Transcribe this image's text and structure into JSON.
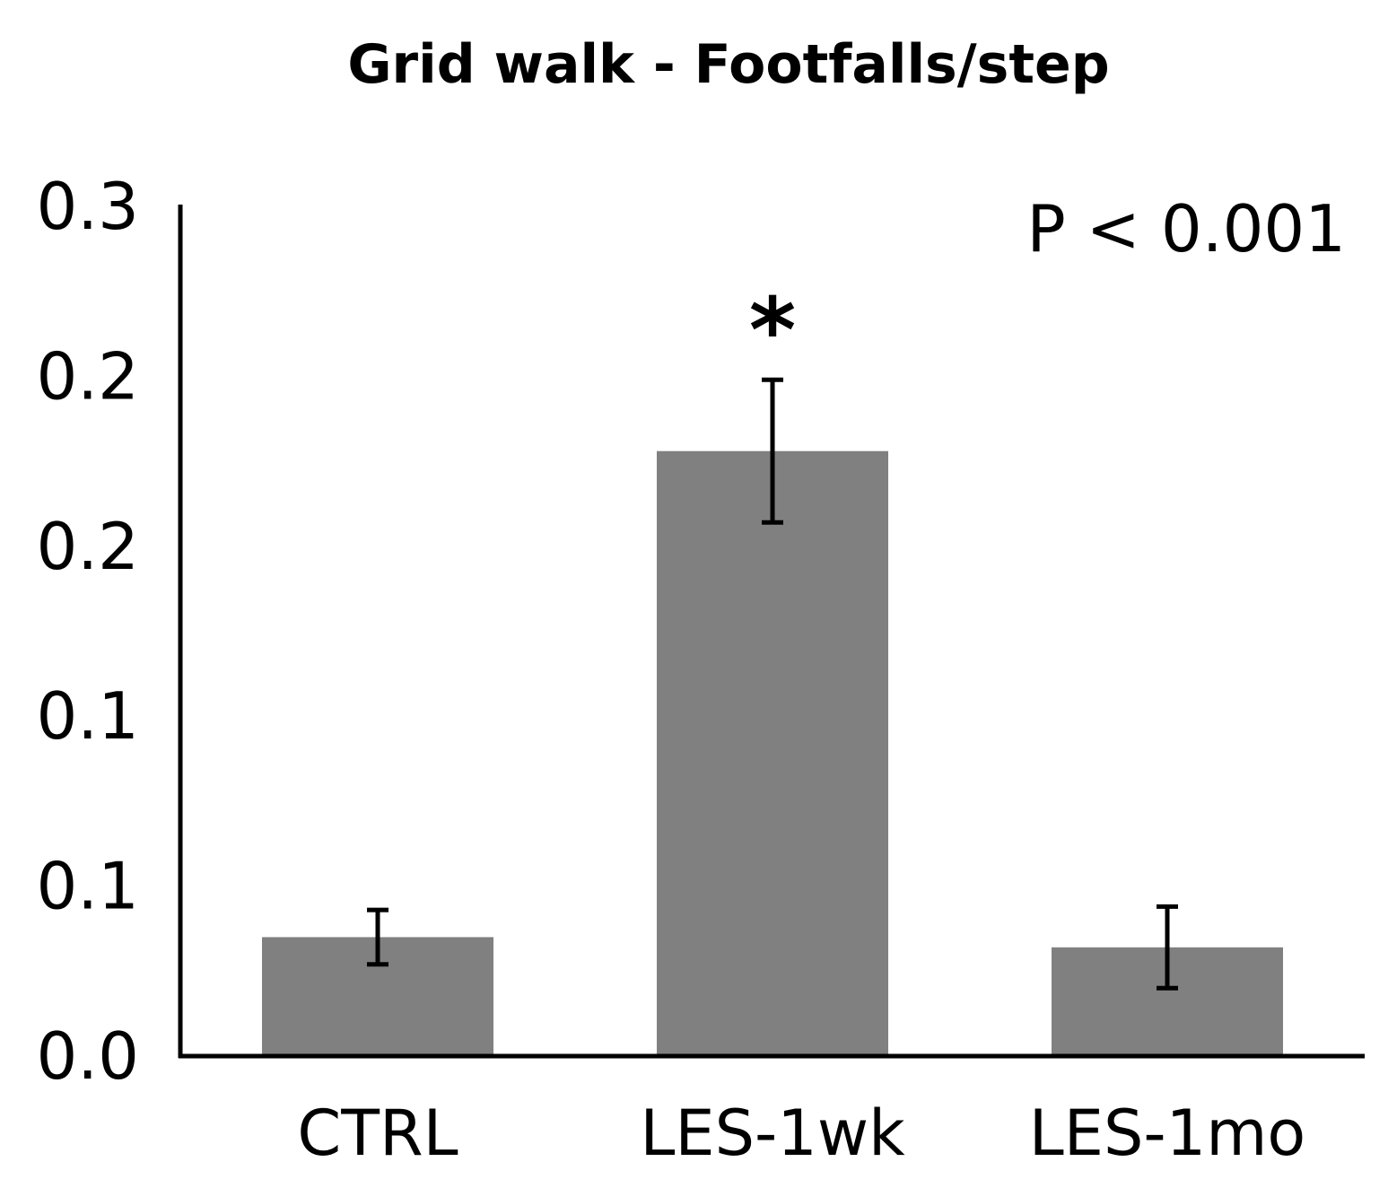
{
  "chart_data": {
    "type": "bar",
    "title": "Grid walk - Footfalls/step",
    "xlabel": "",
    "ylabel": "",
    "categories": [
      "CTRL",
      "LES-1wk",
      "LES-1mo"
    ],
    "values": [
      0.035,
      0.178,
      0.032
    ],
    "error": [
      0.008,
      0.021,
      0.012
    ],
    "ylim": [
      0,
      0.25
    ],
    "y_ticks": [
      0,
      0.05,
      0.1,
      0.15,
      0.2,
      0.25
    ],
    "y_tick_labels": [
      "0.0",
      "0.1",
      "0.1",
      "0.2",
      "0.2",
      "0.3"
    ],
    "annotations": {
      "p_value": "P < 0.001",
      "significance": "*",
      "significance_category": "LES-1wk"
    },
    "colors": {
      "bar": "#808080",
      "axis": "#000000",
      "error_bar": "#000000"
    }
  }
}
